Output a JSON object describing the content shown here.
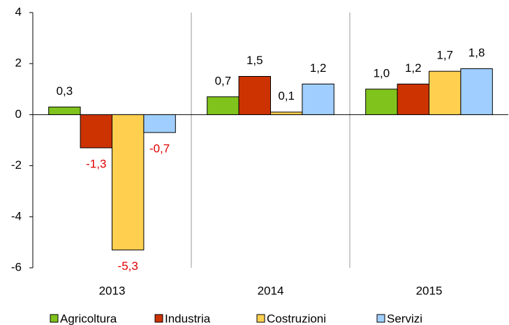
{
  "chart_data": {
    "type": "bar",
    "categories": [
      "2013",
      "2014",
      "2015"
    ],
    "series": [
      {
        "name": "Agricoltura",
        "color": "#80c31c",
        "values": [
          0.3,
          0.7,
          1.0
        ],
        "value_labels": [
          "0,3",
          "0,7",
          "1,0"
        ]
      },
      {
        "name": "Industria",
        "color": "#cc3300",
        "values": [
          -1.3,
          1.5,
          1.2
        ],
        "value_labels": [
          "-1,3",
          "1,5",
          "1,2"
        ]
      },
      {
        "name": "Costruzioni",
        "color": "#ffd050",
        "values": [
          -5.3,
          0.1,
          1.7
        ],
        "value_labels": [
          "-5,3",
          "0,1",
          "1,7"
        ]
      },
      {
        "name": "Servizi",
        "color": "#a0cfff",
        "values": [
          -0.7,
          1.2,
          1.8
        ],
        "value_labels": [
          "-0,7",
          "1,2",
          "1,8"
        ]
      }
    ],
    "ylim": [
      -6,
      4
    ],
    "yticks": [
      -6,
      -4,
      -2,
      0,
      2,
      4
    ],
    "legend": "bottom"
  }
}
